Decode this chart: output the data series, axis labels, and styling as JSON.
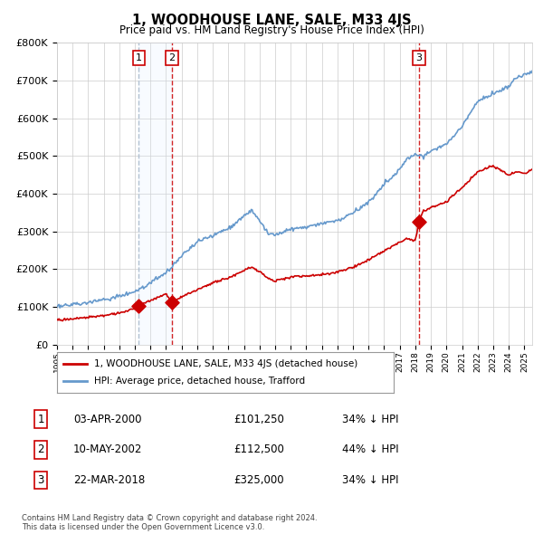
{
  "title": "1, WOODHOUSE LANE, SALE, M33 4JS",
  "subtitle": "Price paid vs. HM Land Registry's House Price Index (HPI)",
  "red_label": "1, WOODHOUSE LANE, SALE, M33 4JS (detached house)",
  "blue_label": "HPI: Average price, detached house, Trafford",
  "footer": "Contains HM Land Registry data © Crown copyright and database right 2024.\nThis data is licensed under the Open Government Licence v3.0.",
  "transactions": [
    {
      "num": 1,
      "date": "03-APR-2000",
      "price": "£101,250",
      "pct": "34% ↓ HPI",
      "year": 2000.25
    },
    {
      "num": 2,
      "date": "10-MAY-2002",
      "price": "£112,500",
      "pct": "44% ↓ HPI",
      "year": 2002.36
    },
    {
      "num": 3,
      "date": "22-MAR-2018",
      "price": "£325,000",
      "pct": "34% ↓ HPI",
      "year": 2018.22
    }
  ],
  "transaction_prices": [
    101250,
    112500,
    325000
  ],
  "transaction_years": [
    2000.25,
    2002.36,
    2018.22
  ],
  "red_color": "#cc0000",
  "blue_color": "#6699cc",
  "shade_color": "#ddeeff",
  "bg_color": "#ffffff",
  "grid_color": "#cccccc",
  "ylim": [
    0,
    800000
  ],
  "xlim_start": 1995,
  "xlim_end": 2025.5,
  "hpi_base_points": [
    [
      1995.0,
      100000
    ],
    [
      1996.0,
      105000
    ],
    [
      1997.0,
      111000
    ],
    [
      1998.0,
      118000
    ],
    [
      1999.0,
      127000
    ],
    [
      2000.0,
      140000
    ],
    [
      2001.0,
      162000
    ],
    [
      2002.0,
      185000
    ],
    [
      2003.0,
      230000
    ],
    [
      2004.0,
      268000
    ],
    [
      2005.0,
      285000
    ],
    [
      2006.0,
      305000
    ],
    [
      2007.0,
      340000
    ],
    [
      2007.5,
      355000
    ],
    [
      2008.0,
      330000
    ],
    [
      2008.5,
      295000
    ],
    [
      2009.0,
      285000
    ],
    [
      2009.5,
      295000
    ],
    [
      2010.0,
      305000
    ],
    [
      2011.0,
      310000
    ],
    [
      2012.0,
      315000
    ],
    [
      2013.0,
      325000
    ],
    [
      2014.0,
      345000
    ],
    [
      2015.0,
      375000
    ],
    [
      2016.0,
      420000
    ],
    [
      2017.0,
      460000
    ],
    [
      2017.5,
      490000
    ],
    [
      2018.0,
      500000
    ],
    [
      2018.5,
      495000
    ],
    [
      2019.0,
      510000
    ],
    [
      2020.0,
      525000
    ],
    [
      2021.0,
      575000
    ],
    [
      2022.0,
      640000
    ],
    [
      2023.0,
      660000
    ],
    [
      2024.0,
      680000
    ],
    [
      2024.5,
      700000
    ],
    [
      2025.0,
      710000
    ],
    [
      2025.5,
      720000
    ]
  ],
  "red_base_points": [
    [
      1995.0,
      65000
    ],
    [
      1996.0,
      68000
    ],
    [
      1997.0,
      72000
    ],
    [
      1998.0,
      77000
    ],
    [
      1999.0,
      83000
    ],
    [
      2000.0,
      95000
    ],
    [
      2000.25,
      101250
    ],
    [
      2001.0,
      117000
    ],
    [
      2002.0,
      134000
    ],
    [
      2002.36,
      112500
    ],
    [
      2003.0,
      125000
    ],
    [
      2004.0,
      145000
    ],
    [
      2005.0,
      162000
    ],
    [
      2006.0,
      175000
    ],
    [
      2007.0,
      196000
    ],
    [
      2007.5,
      204000
    ],
    [
      2008.0,
      192000
    ],
    [
      2008.5,
      175000
    ],
    [
      2009.0,
      168000
    ],
    [
      2009.5,
      173000
    ],
    [
      2010.0,
      178000
    ],
    [
      2011.0,
      180000
    ],
    [
      2012.0,
      183000
    ],
    [
      2013.0,
      190000
    ],
    [
      2014.0,
      203000
    ],
    [
      2015.0,
      222000
    ],
    [
      2016.0,
      246000
    ],
    [
      2017.0,
      268000
    ],
    [
      2017.5,
      279000
    ],
    [
      2018.0,
      271000
    ],
    [
      2018.22,
      325000
    ],
    [
      2018.5,
      349000
    ],
    [
      2019.0,
      360000
    ],
    [
      2020.0,
      375000
    ],
    [
      2021.0,
      412000
    ],
    [
      2022.0,
      455000
    ],
    [
      2023.0,
      470000
    ],
    [
      2024.0,
      445000
    ],
    [
      2024.5,
      455000
    ],
    [
      2025.0,
      450000
    ],
    [
      2025.5,
      460000
    ]
  ]
}
